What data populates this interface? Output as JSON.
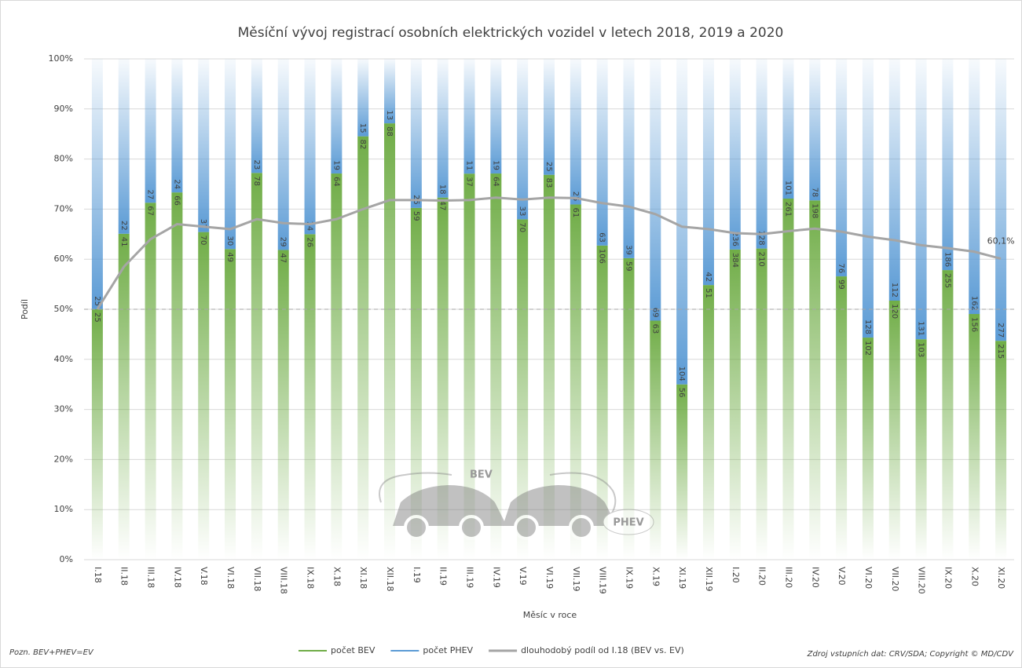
{
  "chart_data": {
    "type": "bar",
    "stacking": "percent",
    "title": "Měsíční vývoj registrací osobních elektrických vozidel v letech 2018, 2019 a 2020",
    "y_label": "Podíl",
    "x_label": "Měsíc v roce",
    "categories": [
      "I.18",
      "II.18",
      "III.18",
      "IV.18",
      "V.18",
      "VI.18",
      "VII.18",
      "VIII.18",
      "IX.18",
      "X.18",
      "XI.18",
      "XII.18",
      "I.19",
      "II.19",
      "III.19",
      "IV.19",
      "V.19",
      "VI.19",
      "VII.19",
      "VIII.19",
      "IX.19",
      "X.19",
      "XI.19",
      "XII.19",
      "I.20",
      "II.20",
      "III.20",
      "IV.20",
      "V.20",
      "VI.20",
      "VII.20",
      "VIII.20",
      "IX.20",
      "X.20",
      "XI.20"
    ],
    "series": [
      {
        "name": "počet BEV",
        "color": "#70ad47",
        "values": [
          25,
          41,
          67,
          66,
          70,
          49,
          78,
          47,
          26,
          64,
          82,
          88,
          59,
          47,
          37,
          64,
          70,
          83,
          61,
          106,
          59,
          63,
          56,
          51,
          384,
          210,
          261,
          198,
          99,
          102,
          120,
          103,
          255,
          156,
          215
        ]
      },
      {
        "name": "počet PHEV",
        "color": "#5b9bd5",
        "values": [
          25,
          22,
          27,
          24,
          37,
          30,
          23,
          29,
          14,
          19,
          15,
          13,
          25,
          18,
          11,
          19,
          33,
          25,
          25,
          63,
          39,
          69,
          104,
          42,
          236,
          128,
          101,
          78,
          76,
          128,
          112,
          131,
          186,
          162,
          277
        ]
      },
      {
        "name": "dlouhodobý podíl od I.18 (BEV vs. EV)",
        "type": "line",
        "color": "#a5a5a5",
        "values": [
          50,
          58.5,
          64,
          67,
          66.5,
          66,
          68,
          67.2,
          67,
          68,
          70,
          71.8,
          71.8,
          71.7,
          71.8,
          72.3,
          71.9,
          72.3,
          72.2,
          71.2,
          70.5,
          69,
          66.5,
          66,
          65.2,
          65,
          65.6,
          66.1,
          65.5,
          64.5,
          63.8,
          62.8,
          62.2,
          61.5,
          60.1
        ],
        "value_labels": [
          null,
          null,
          null,
          null,
          null,
          null,
          null,
          null,
          null,
          null,
          null,
          null,
          null,
          null,
          null,
          null,
          null,
          null,
          null,
          null,
          null,
          null,
          null,
          null,
          null,
          null,
          null,
          null,
          null,
          null,
          null,
          null,
          null,
          null,
          "60,1%"
        ]
      }
    ],
    "reference_line": 50,
    "ylim": [
      0,
      100
    ],
    "yticks": [
      {
        "value": 0,
        "label": "0%"
      },
      {
        "value": 10,
        "label": "10%"
      },
      {
        "value": 20,
        "label": "20%"
      },
      {
        "value": 30,
        "label": "30%"
      },
      {
        "value": 40,
        "label": "40%"
      },
      {
        "value": 50,
        "label": "50%"
      },
      {
        "value": 60,
        "label": "60%"
      },
      {
        "value": 70,
        "label": "70%"
      },
      {
        "value": 80,
        "label": "80%"
      },
      {
        "value": 90,
        "label": "90%"
      },
      {
        "value": 100,
        "label": "100%"
      }
    ],
    "grid": true,
    "note": "Pozn. BEV+PHEV=EV",
    "source": "Zdroj vstupních dat: CRV/SDA; Copyright © MD/CDV",
    "illustration_labels": [
      "BEV",
      "PHEV"
    ]
  }
}
